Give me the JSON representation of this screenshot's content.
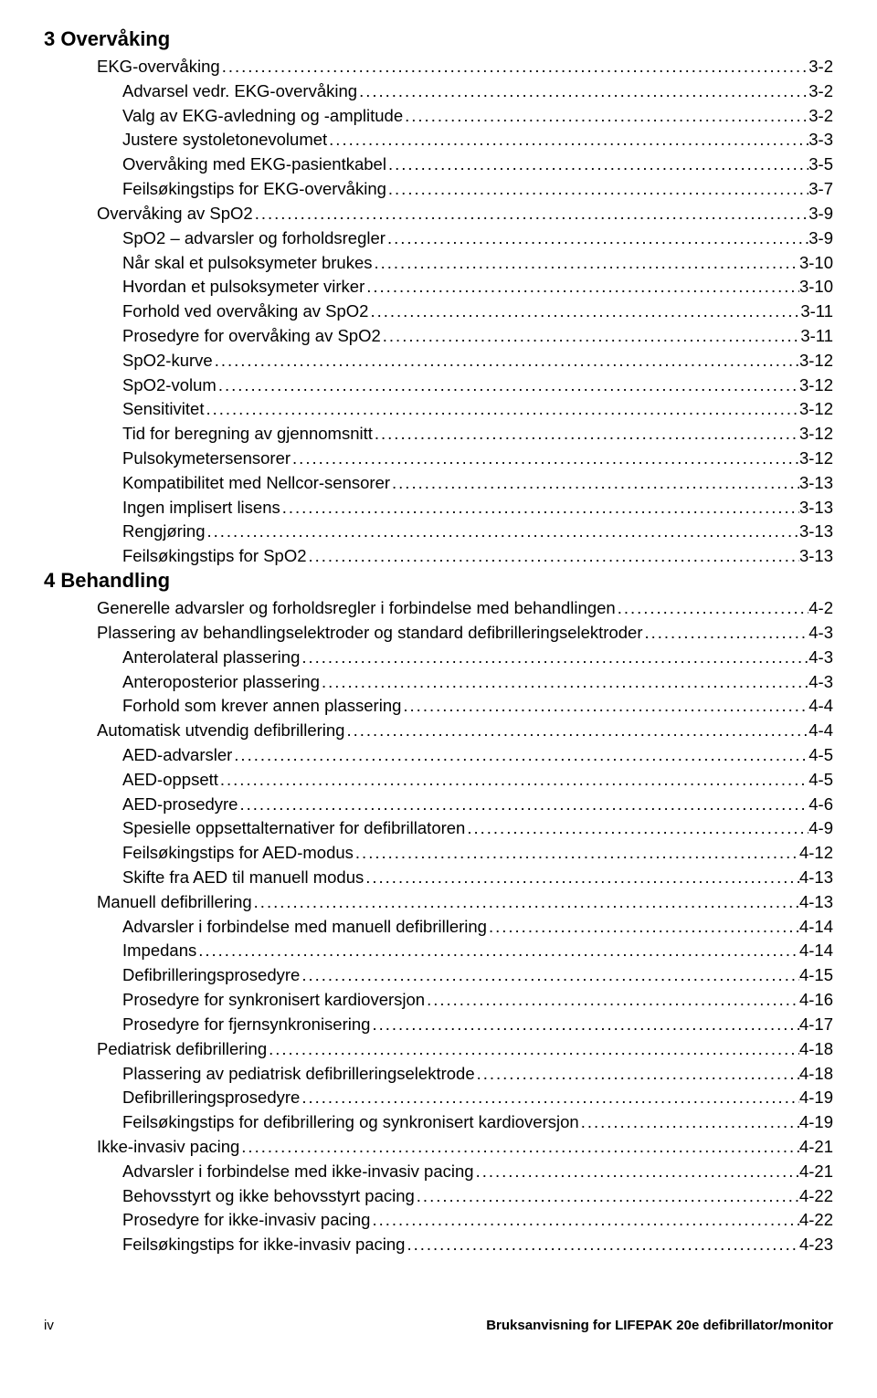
{
  "colors": {
    "background": "#ffffff",
    "text": "#000000"
  },
  "typography": {
    "heading_fontsize_pt": 16,
    "body_fontsize_pt": 14,
    "footer_fontsize_pt": 11,
    "font_family": "Arial, Helvetica, sans-serif"
  },
  "dot_leader": "..................................................................................................................................................................................................",
  "sections": [
    {
      "heading": "3 Overvåking",
      "entries": [
        {
          "indent": 1,
          "label": "EKG-overvåking",
          "page": "3-2"
        },
        {
          "indent": 2,
          "label": "Advarsel vedr. EKG-overvåking",
          "page": "3-2"
        },
        {
          "indent": 2,
          "label": "Valg av EKG-avledning og -amplitude",
          "page": "3-2"
        },
        {
          "indent": 2,
          "label": "Justere systoletonevolumet",
          "page": "3-3"
        },
        {
          "indent": 2,
          "label": "Overvåking med EKG-pasientkabel",
          "page": "3-5"
        },
        {
          "indent": 2,
          "label": "Feilsøkingstips for EKG-overvåking",
          "page": "3-7"
        },
        {
          "indent": 1,
          "label": "Overvåking av SpO2",
          "page": "3-9"
        },
        {
          "indent": 2,
          "label": "SpO2 – advarsler og forholdsregler",
          "page": "3-9"
        },
        {
          "indent": 2,
          "label": "Når skal et pulsoksymeter brukes",
          "page": "3-10"
        },
        {
          "indent": 2,
          "label": "Hvordan et pulsoksymeter virker",
          "page": "3-10"
        },
        {
          "indent": 2,
          "label": "Forhold ved overvåking av SpO2",
          "page": "3-11"
        },
        {
          "indent": 2,
          "label": "Prosedyre for overvåking av SpO2",
          "page": "3-11"
        },
        {
          "indent": 2,
          "label": "SpO2-kurve",
          "page": "3-12"
        },
        {
          "indent": 2,
          "label": "SpO2-volum",
          "page": "3-12"
        },
        {
          "indent": 2,
          "label": "Sensitivitet",
          "page": "3-12"
        },
        {
          "indent": 2,
          "label": "Tid for beregning av gjennomsnitt",
          "page": "3-12"
        },
        {
          "indent": 2,
          "label": "Pulsokymetersensorer",
          "page": "3-12"
        },
        {
          "indent": 2,
          "label": "Kompatibilitet med Nellcor-sensorer",
          "page": "3-13"
        },
        {
          "indent": 2,
          "label": "Ingen implisert lisens",
          "page": "3-13"
        },
        {
          "indent": 2,
          "label": "Rengjøring",
          "page": "3-13"
        },
        {
          "indent": 2,
          "label": "Feilsøkingstips for SpO2",
          "page": "3-13"
        }
      ]
    },
    {
      "heading": "4 Behandling",
      "entries": [
        {
          "indent": 1,
          "label": "Generelle advarsler og forholdsregler i forbindelse med behandlingen",
          "page": "4-2"
        },
        {
          "indent": 1,
          "label": "Plassering av behandlingselektroder og standard defibrilleringselektroder",
          "page": "4-3"
        },
        {
          "indent": 2,
          "label": "Anterolateral plassering",
          "page": "4-3"
        },
        {
          "indent": 2,
          "label": "Anteroposterior plassering",
          "page": "4-3"
        },
        {
          "indent": 2,
          "label": "Forhold som krever annen plassering",
          "page": "4-4"
        },
        {
          "indent": 1,
          "label": "Automatisk utvendig defibrillering",
          "page": "4-4"
        },
        {
          "indent": 2,
          "label": "AED-advarsler",
          "page": "4-5"
        },
        {
          "indent": 2,
          "label": "AED-oppsett",
          "page": "4-5"
        },
        {
          "indent": 2,
          "label": "AED-prosedyre",
          "page": "4-6"
        },
        {
          "indent": 2,
          "label": "Spesielle oppsettalternativer for defibrillatoren",
          "page": "4-9"
        },
        {
          "indent": 2,
          "label": "Feilsøkingstips for AED-modus",
          "page": "4-12"
        },
        {
          "indent": 2,
          "label": "Skifte fra AED til manuell modus",
          "page": "4-13"
        },
        {
          "indent": 1,
          "label": "Manuell defibrillering",
          "page": "4-13"
        },
        {
          "indent": 2,
          "label": "Advarsler i forbindelse med manuell defibrillering",
          "page": "4-14"
        },
        {
          "indent": 2,
          "label": "Impedans",
          "page": "4-14"
        },
        {
          "indent": 2,
          "label": "Defibrilleringsprosedyre",
          "page": "4-15"
        },
        {
          "indent": 2,
          "label": "Prosedyre for synkronisert kardioversjon",
          "page": "4-16"
        },
        {
          "indent": 2,
          "label": "Prosedyre for fjernsynkronisering",
          "page": "4-17"
        },
        {
          "indent": 1,
          "label": "Pediatrisk defibrillering",
          "page": "4-18"
        },
        {
          "indent": 2,
          "label": "Plassering av pediatrisk defibrilleringselektrode",
          "page": "4-18"
        },
        {
          "indent": 2,
          "label": "Defibrilleringsprosedyre",
          "page": "4-19"
        },
        {
          "indent": 2,
          "label": "Feilsøkingstips for defibrillering og synkronisert kardioversjon",
          "page": "4-19"
        },
        {
          "indent": 1,
          "label": "Ikke-invasiv pacing",
          "page": "4-21"
        },
        {
          "indent": 2,
          "label": "Advarsler i forbindelse med ikke-invasiv pacing",
          "page": "4-21"
        },
        {
          "indent": 2,
          "label": "Behovsstyrt og ikke behovsstyrt pacing",
          "page": "4-22"
        },
        {
          "indent": 2,
          "label": "Prosedyre for ikke-invasiv pacing",
          "page": "4-22"
        },
        {
          "indent": 2,
          "label": "Feilsøkingstips for ikke-invasiv pacing",
          "page": "4-23"
        }
      ]
    }
  ],
  "footer": {
    "left": "iv",
    "right": "Bruksanvisning for LIFEPAK 20e defibrillator/monitor"
  }
}
